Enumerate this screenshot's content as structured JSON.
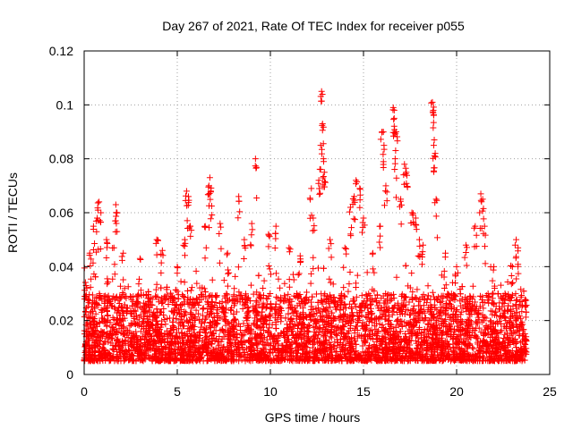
{
  "chart_data": {
    "type": "scatter",
    "title": "Day 267 of 2021, Rate Of TEC Index for receiver p055",
    "xlabel": "GPS time / hours",
    "ylabel": "ROTI / TECUs",
    "xlim": [
      0,
      25
    ],
    "ylim": [
      0,
      0.12
    ],
    "x_ticks": [
      0,
      5,
      10,
      15,
      20,
      25
    ],
    "x_tick_labels": [
      "0",
      "5",
      "10",
      "15",
      "20",
      "25"
    ],
    "y_ticks": [
      0,
      0.02,
      0.04,
      0.06,
      0.08,
      0.1,
      0.12
    ],
    "y_tick_labels": [
      "0",
      "0.02",
      "0.04",
      "0.06",
      "0.08",
      "0.1",
      "0.12"
    ],
    "grid": true,
    "legend": "none",
    "marker": "+",
    "marker_color": "#ff0000",
    "x_data_range": [
      0,
      23.75
    ],
    "typical_range": [
      0.005,
      0.03
    ],
    "series": [
      {
        "values_note_free": true,
        "points": [
          [
            0.1,
            0.033
          ],
          [
            0.3,
            0.045
          ],
          [
            0.5,
            0.055
          ],
          [
            0.7,
            0.058
          ],
          [
            0.8,
            0.064
          ],
          [
            0.9,
            0.06
          ],
          [
            1.2,
            0.05
          ],
          [
            1.6,
            0.047
          ],
          [
            1.7,
            0.063
          ],
          [
            1.75,
            0.06
          ],
          [
            2.1,
            0.045
          ],
          [
            3.0,
            0.043
          ],
          [
            3.9,
            0.05
          ],
          [
            4.2,
            0.046
          ],
          [
            5.0,
            0.04
          ],
          [
            5.4,
            0.05
          ],
          [
            5.5,
            0.068
          ],
          [
            5.6,
            0.066
          ],
          [
            5.7,
            0.055
          ],
          [
            6.5,
            0.055
          ],
          [
            6.7,
            0.07
          ],
          [
            6.75,
            0.073
          ],
          [
            6.8,
            0.068
          ],
          [
            7.3,
            0.056
          ],
          [
            7.7,
            0.045
          ],
          [
            8.3,
            0.066
          ],
          [
            8.6,
            0.05
          ],
          [
            9.2,
            0.08
          ],
          [
            9.0,
            0.056
          ],
          [
            9.9,
            0.052
          ],
          [
            10.3,
            0.055
          ],
          [
            11.0,
            0.047
          ],
          [
            11.6,
            0.044
          ],
          [
            12.2,
            0.069
          ],
          [
            12.3,
            0.058
          ],
          [
            12.6,
            0.072
          ],
          [
            12.7,
            0.085
          ],
          [
            12.75,
            0.105
          ],
          [
            12.8,
            0.093
          ],
          [
            12.85,
            0.08
          ],
          [
            12.9,
            0.075
          ],
          [
            13.2,
            0.05
          ],
          [
            14.0,
            0.047
          ],
          [
            14.3,
            0.062
          ],
          [
            14.5,
            0.066
          ],
          [
            14.6,
            0.072
          ],
          [
            14.8,
            0.069
          ],
          [
            15.0,
            0.058
          ],
          [
            15.5,
            0.045
          ],
          [
            15.9,
            0.055
          ],
          [
            16.0,
            0.09
          ],
          [
            16.1,
            0.085
          ],
          [
            16.2,
            0.07
          ],
          [
            16.6,
            0.099
          ],
          [
            16.65,
            0.098
          ],
          [
            16.7,
            0.08
          ],
          [
            16.75,
            0.09
          ],
          [
            17.0,
            0.065
          ],
          [
            17.2,
            0.078
          ],
          [
            17.3,
            0.075
          ],
          [
            17.6,
            0.06
          ],
          [
            17.8,
            0.058
          ],
          [
            18.0,
            0.05
          ],
          [
            18.2,
            0.048
          ],
          [
            18.7,
            0.101
          ],
          [
            18.75,
            0.098
          ],
          [
            18.8,
            0.087
          ],
          [
            18.85,
            0.082
          ],
          [
            18.9,
            0.065
          ],
          [
            19.4,
            0.045
          ],
          [
            20.0,
            0.04
          ],
          [
            20.5,
            0.048
          ],
          [
            21.0,
            0.055
          ],
          [
            21.3,
            0.067
          ],
          [
            21.4,
            0.065
          ],
          [
            21.5,
            0.055
          ],
          [
            22.0,
            0.04
          ],
          [
            22.6,
            0.03
          ],
          [
            23.0,
            0.04
          ],
          [
            23.2,
            0.05
          ],
          [
            23.3,
            0.047
          ],
          [
            23.7,
            0.013
          ]
        ]
      }
    ]
  }
}
